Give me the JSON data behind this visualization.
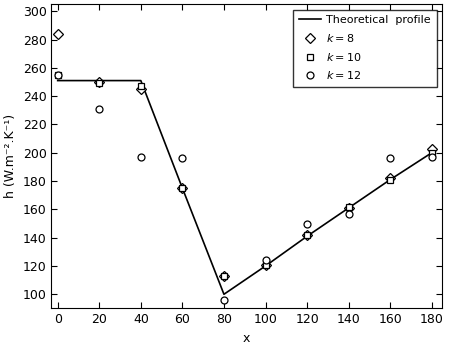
{
  "theoretical_x": [
    0,
    20,
    40,
    60,
    80,
    100,
    120,
    140,
    160,
    180
  ],
  "theoretical_y": [
    251,
    251,
    251,
    175,
    100,
    120,
    141,
    161,
    181,
    200
  ],
  "k8_x": [
    0,
    20,
    40,
    60,
    80,
    100,
    120,
    140,
    160,
    180
  ],
  "k8_y": [
    284,
    250,
    245,
    175,
    113,
    121,
    142,
    161,
    182,
    203
  ],
  "k10_x": [
    0,
    20,
    40,
    60,
    80,
    100,
    120,
    140,
    160,
    180
  ],
  "k10_y": [
    255,
    249,
    247,
    175,
    113,
    121,
    142,
    162,
    181,
    200
  ],
  "k12_x": [
    0,
    20,
    40,
    60,
    80,
    100,
    120,
    140,
    160,
    180
  ],
  "k12_y": [
    255,
    231,
    197,
    196,
    96,
    124,
    150,
    157,
    196,
    197
  ],
  "xlabel": "x",
  "ylabel": "h (W.m⁻².K⁻¹)",
  "xlim": [
    -3,
    185
  ],
  "ylim": [
    90,
    305
  ],
  "yticks": [
    100,
    120,
    140,
    160,
    180,
    200,
    220,
    240,
    260,
    280,
    300
  ],
  "xticks": [
    0,
    20,
    40,
    60,
    80,
    100,
    120,
    140,
    160,
    180
  ],
  "legend_theoretical": "Theoretical  profile",
  "legend_k8": "$k = 8$",
  "legend_k10": "$k = 10$",
  "legend_k12": "$k = 12$",
  "line_color": "black",
  "marker_color": "black",
  "bg_color": "white",
  "tick_fontsize": 9,
  "label_fontsize": 9,
  "legend_fontsize": 8
}
